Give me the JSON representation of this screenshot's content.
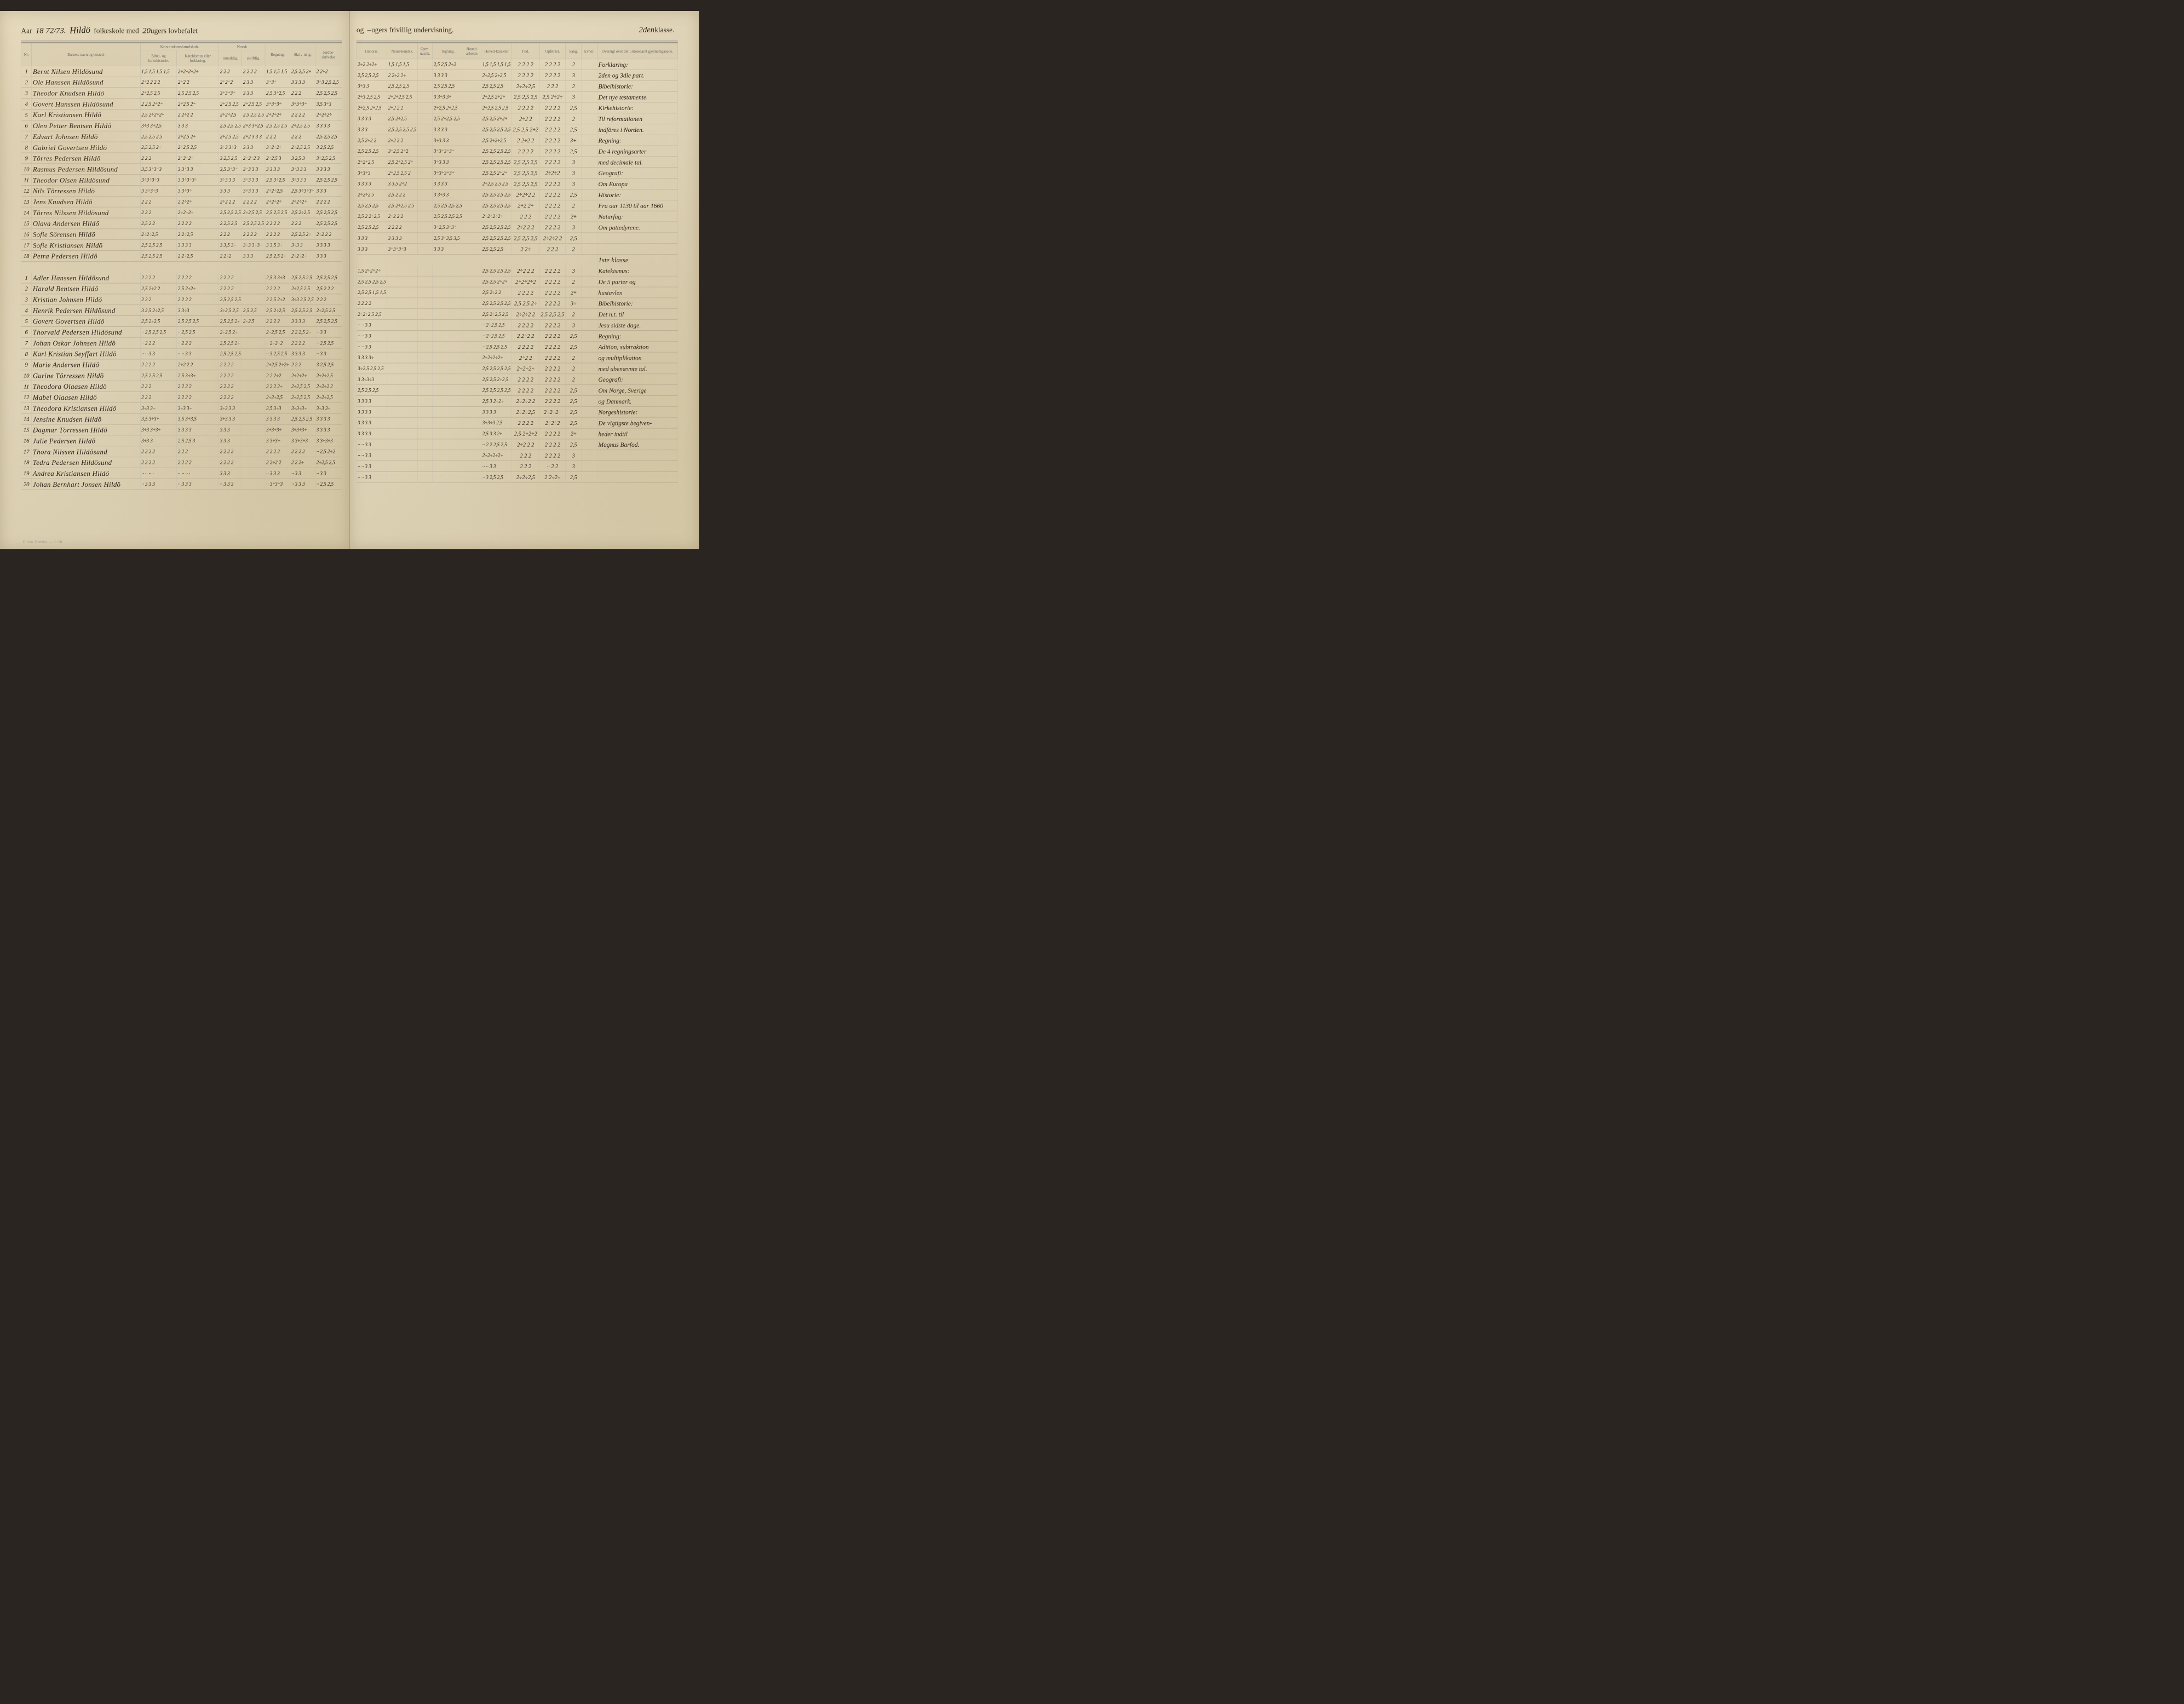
{
  "meta": {
    "year_prefix": "Aar",
    "year_value": "18 72/73.",
    "school_name": "Hildö",
    "left_header_printed": "folkeskole med",
    "weeks_mandatory": "20",
    "left_header_tail": "ugers lovbefalet",
    "right_header_printed": "og",
    "weeks_optional": "–",
    "right_header_tail": "ugers frivillig undervisning.",
    "klasse_label": "klasse.",
    "klasse_value": "2den",
    "klasse_mid": "1ste klasse",
    "footer": "E. Sem. Fredrikst. — A. CB."
  },
  "columns_left": {
    "nr": "Nr.",
    "name": "Barnets navn og bosted.",
    "kristendom_group": "Kristendomskundskab.",
    "bibel": "Bibel- og kirkehistorie.",
    "katekismus": "Katekismus eller forklaring.",
    "norsk_group": "Norsk",
    "mundtlig": "mundtlig.",
    "skriftlig": "skriftlig.",
    "regning": "Regning.",
    "skrivning": "Skriv-ning.",
    "jord": "Jordbe-skrivelse"
  },
  "columns_right": {
    "historie": "Historie.",
    "natur": "Natur-kundsk.",
    "gym": "Gym-nastik.",
    "tegning": "Tegning.",
    "haand": "Haand-arbeide.",
    "hoved": "Hoved-karakter",
    "flid": "Flid.",
    "opforsel": "Opførsel.",
    "sang": "Sang.",
    "evner": "Evner.",
    "oversigt": "Oversigt over det i skoleaaret gjennemgaaede."
  },
  "section1": [
    {
      "nr": "1",
      "name": "Bernt Nilsen Hildösund",
      "l": [
        "1,5 1,5 1,5 1,5",
        "2÷2÷2÷2÷",
        "2 2 2",
        "2 2 2 2",
        "1,5 1,5 1,5",
        "2,5 2,5 2÷",
        "2 2÷2"
      ],
      "r": [
        "2÷2 2÷2÷",
        "1,5 1,5 1,5",
        "",
        "2,5 2,5 2÷2",
        "",
        "1,5 1,5 1,5 1,5",
        "2 2 2 2",
        "2 2 2 2",
        "2",
        "",
        "2"
      ],
      "note": "Forklaring:"
    },
    {
      "nr": "2",
      "name": "Ole Hanssen Hildösund",
      "l": [
        "2÷2 2 2 2",
        "2÷2 2",
        "2÷2÷2",
        "2 3 3",
        "3÷3÷",
        "3 3 3 3",
        "3÷3 2,5 2,5"
      ],
      "r": [
        "2,5 2,5 2,5",
        "2 2÷2 2÷",
        "",
        "3 3 3 3",
        "",
        "2÷2,5 2÷2,5",
        "2 2 2 2",
        "2 2 2 2",
        "3",
        "",
        "2"
      ],
      "note": "2den og 3die part."
    },
    {
      "nr": "3",
      "name": "Theodor Knudsen Hildö",
      "l": [
        "2÷2,5 2,5",
        "2,5 2,5 2,5",
        "3÷3÷3÷",
        "3 3 3",
        "2,5 3÷2,5",
        "2 2 2",
        "2,5 2,5 2,5"
      ],
      "r": [
        "3÷3 3",
        "2,5 2,5 2,5",
        "",
        "2,5 2,5 2,5",
        "",
        "2,5 2,5 2,5",
        "2÷2÷2,5",
        "2 2 2",
        "2",
        "",
        "2÷"
      ],
      "note": "Bibelhistorie:"
    },
    {
      "nr": "4",
      "name": "Govert Hanssen Hildösund",
      "l": [
        "2 2,5 2÷2÷",
        "2÷2,5 2÷",
        "2÷2,5 2,5",
        "2÷2,5 2,5",
        "3÷3÷3÷",
        "3÷3÷3÷",
        "3,5 3÷3"
      ],
      "r": [
        "2÷3 2,5 2,5",
        "2÷2÷2,5 2,5",
        "",
        "3 3÷3 3÷",
        "",
        "2÷2,5 2÷2÷",
        "2,5 2,5 2,5",
        "2,5 2÷2÷",
        "3",
        "",
        "2"
      ],
      "note": "Det nye testamente."
    },
    {
      "nr": "5",
      "name": "Karl Kristiansen Hildö",
      "l": [
        "2,5 2÷2÷2÷",
        "2 2÷2 2",
        "2÷2÷2,5",
        "2,5 2,5 2,5",
        "2÷2÷2÷",
        "2 2 2 2",
        "2÷2÷2÷"
      ],
      "r": [
        "2÷2,5 2÷2,5",
        "2÷2 2 2",
        "",
        "2÷2,5 2÷2,5",
        "",
        "2÷2,5 2,5 2,5",
        "2 2 2 2",
        "2 2 2 2",
        "2,5",
        "",
        "2,5"
      ],
      "note": "Kirkehistorie:"
    },
    {
      "nr": "6",
      "name": "Olen Petter Bentsen Hildö",
      "l": [
        "3÷3 3÷2,5",
        "3 3 3",
        "2,5 2,5 2,5",
        "2÷3 3÷2,5",
        "2,5 2,5 2,5",
        "2÷2,5 2,5",
        "3 3 3 3"
      ],
      "r": [
        "3 3 3 3",
        "2,5 2÷2,5",
        "",
        "2,5 2÷2,5 2,5",
        "",
        "2,5 2,5 2÷2÷",
        "2÷2 2",
        "2 2 2 2",
        "2",
        "",
        "2÷"
      ],
      "note": "Til reformationen"
    },
    {
      "nr": "7",
      "name": "Edvart Johnsen Hildö",
      "l": [
        "2,5 2,5 2,5",
        "2÷2,5 2÷",
        "2÷2,5 2,5",
        "2÷2 3 3 3",
        "2 2 2",
        "2 2 2",
        "2,5 2,5 2,5"
      ],
      "r": [
        "3 3 3",
        "2,5 2,5 2,5 2,5",
        "",
        "3 3 3 3",
        "",
        "2,5 2,5 2,5 2,5",
        "2,5 2,5 2÷2",
        "2 2 2 2",
        "2,5",
        "",
        "2"
      ],
      "note": "indföres i Norden."
    },
    {
      "nr": "8",
      "name": "Gabriel Govertsen Hildö",
      "l": [
        "2,5 2,5 2÷",
        "2÷2,5 2,5",
        "3÷3 3÷3",
        "3 3 3",
        "3÷2÷2÷",
        "2÷2,5 2,5",
        "3 2,5 2,5"
      ],
      "r": [
        "2,5 2÷2 2",
        "2÷2 2 2",
        "",
        "3÷3 3 3",
        "",
        "2,5 2÷2÷2,5",
        "2 2÷2 2",
        "2 2 2 2",
        "3+",
        "",
        "2"
      ],
      "note": "Regning:"
    },
    {
      "nr": "9",
      "name": "Törres Pedersen Hildö",
      "l": [
        "2 2 2",
        "2÷2÷2÷",
        "3 2,5 2,5",
        "2÷2÷2 3",
        "2÷2,5 3",
        "3 2,5 3",
        "3÷2,5 2,5"
      ],
      "r": [
        "2,5 2,5 2,5",
        "3÷2,5 2÷2",
        "",
        "3÷3÷3÷3÷",
        "",
        "2,5 2,5 2,5 2,5",
        "2 2 2 2",
        "2 2 2 2",
        "2,5",
        "",
        "2"
      ],
      "note": "De 4 regningsarter"
    },
    {
      "nr": "10",
      "name": "Rasmus Pedersen Hildösund",
      "l": [
        "3,5 3÷3÷3",
        "3 3÷3 3",
        "3,5 3÷3÷",
        "3÷3 3 3",
        "3 3 3 3",
        "3÷3 3 3",
        "3 3 3 3"
      ],
      "r": [
        "2÷2÷2,5",
        "2,5 2÷2,5 2÷",
        "",
        "3÷3 3 3",
        "",
        "2,5 2,5 2,5 2,5",
        "2,5 2,5 2,5",
        "2 2 2 2",
        "3",
        "",
        "2÷"
      ],
      "note": "med decimale tal."
    },
    {
      "nr": "11",
      "name": "Theodor Olsen Hildösund",
      "l": [
        "3÷3÷3÷3",
        "3 3÷3÷3÷",
        "3÷3 3 3",
        "3÷3 3 3",
        "2,5 3÷2,5",
        "3÷3 3 3",
        "2,5 2,5 2,5"
      ],
      "r": [
        "3÷3÷3",
        "2÷2,5 2,5 2",
        "",
        "3÷3÷3÷3÷",
        "",
        "2,5 2,5 2÷2÷",
        "2,5 2,5 2,5",
        "2÷2÷2",
        "3",
        "",
        "2"
      ],
      "note": "Geografi:"
    },
    {
      "nr": "12",
      "name": "Nils Törressen Hildö",
      "l": [
        "3 3÷3÷3",
        "3 3÷3÷",
        "3 3 3",
        "3÷3 3 3",
        "2÷2÷2,5",
        "2,5 3÷3÷3÷",
        "3 3 3"
      ],
      "r": [
        "3 3 3 3",
        "3 3,5 2÷2",
        "",
        "3 3 3 3",
        "",
        "2÷2,5 2,5 2,5",
        "2,5 2,5 2,5",
        "2 2 2 2",
        "3",
        "",
        "2,5"
      ],
      "note": "Om Europa"
    },
    {
      "nr": "13",
      "name": "Jens Knudsen Hildö",
      "l": [
        "2 2 2",
        "2 2÷2÷",
        "2÷2 2 2",
        "2 2 2 2",
        "2÷2÷2÷",
        "2÷2÷2÷",
        "2 2 2 2"
      ],
      "r": [
        "2÷2÷2,5",
        "2,5 2 2 2",
        "",
        "3 3÷3 3",
        "",
        "2,5 2,5 2,5 2,5",
        "2÷2÷2 2",
        "2 2 2 2",
        "2,5",
        "",
        "2"
      ],
      "note": "Historie:"
    },
    {
      "nr": "14",
      "name": "Törres Nilssen Hildösund",
      "l": [
        "2 2 2",
        "2÷2÷2÷",
        "2,5 2,5 2,5",
        "2÷2,5 2,5",
        "2,5 2,5 2,5",
        "2,5 2÷2,5",
        "2,5 2,5 2,5"
      ],
      "r": [
        "2,5 2,5 2,5",
        "2,5 2÷2,5 2,5",
        "",
        "2,5 2,5 2,5 2,5",
        "",
        "2,5 2,5 2,5 2,5",
        "2÷2 2÷",
        "2 2 2 2",
        "2",
        "",
        "2"
      ],
      "note": "Fra aar 1130 til aar 1660"
    },
    {
      "nr": "15",
      "name": "Olava Andersen Hildö",
      "l": [
        "2,5 2 2",
        "2 2 2 2",
        "2 2,5 2,5",
        "2,5 2,5 2,5",
        "2 2 2 2",
        "2 2 2",
        "2,5 2,5 2,5"
      ],
      "r": [
        "2,5 2 2÷2,5",
        "2÷2 2 2",
        "",
        "2,5 2,5 2,5 2,5",
        "",
        "2÷2÷2÷2÷",
        "2 2 2",
        "2 2 2 2",
        "2÷",
        "",
        "2"
      ],
      "note": "Naturfag:"
    },
    {
      "nr": "16",
      "name": "Sofie Sörensen Hildö",
      "l": [
        "2÷2÷2,5",
        "2 2÷2,5",
        "2 2 2",
        "2 2 2 2",
        "2 2 2 2",
        "2,5 2,5 2÷",
        "2÷2 2 2"
      ],
      "r": [
        "2,5 2,5 2,5",
        "2 2 2 2",
        "",
        "3÷2,5 3÷3÷",
        "",
        "2,5 2,5 2,5 2,5",
        "2÷2 2 2",
        "2 2 2 2",
        "3",
        "",
        "2÷"
      ],
      "note": "Om pattedyrene."
    },
    {
      "nr": "17",
      "name": "Sofie Kristiansen Hildö",
      "l": [
        "2,5 2,5 2,5",
        "3 3 3 3",
        "3 3,5 3÷",
        "3÷3 3÷3÷",
        "3 3,5 3÷",
        "3÷3 3",
        "3 3 3 3"
      ],
      "r": [
        "3 3 3",
        "3 3 3 3",
        "",
        "2,5 3÷3,5 3,5",
        "",
        "2,5 2,5 2,5 2,5",
        "2,5 2,5 2,5",
        "2÷2÷2 2",
        "2,5",
        "",
        "2,5"
      ],
      "note": ""
    },
    {
      "nr": "18",
      "name": "Petra Pedersen Hildö",
      "l": [
        "2,5 2,5 2,5",
        "2 2÷2,5",
        "2 2÷2",
        "3 3 3",
        "2,5 2,5 2÷",
        "2÷2÷2÷",
        "3 3 3"
      ],
      "r": [
        "3 3 3",
        "3÷3÷3÷3",
        "",
        "3 3 3",
        "",
        "2,5 2,5 2,5",
        "2 2÷",
        "2 2 2",
        "2",
        "",
        "2÷"
      ],
      "note": ""
    }
  ],
  "section2": [
    {
      "nr": "1",
      "name": "Adler Hanssen Hildösund",
      "l": [
        "2 2 2 2",
        "2 2 2 2",
        "2 2 2 2",
        "",
        "2,5 3 3÷3",
        "2,5 2,5 2,5",
        "2,5 2,5 2,5"
      ],
      "r": [
        "1,5 2÷2÷2÷",
        "",
        "",
        "",
        "",
        "2,5 2,5 2,5 2,5",
        "2÷2 2 2",
        "2 2 2 2",
        "3",
        "",
        "2"
      ],
      "note": "Katekismus:"
    },
    {
      "nr": "2",
      "name": "Harald Bentsen Hildö",
      "l": [
        "2,5 2÷2 2",
        "2,5 2÷2÷",
        "2 2 2 2",
        "",
        "2 2 2 2",
        "2÷2,5 2,5",
        "2,5 2 2 2"
      ],
      "r": [
        "2,5 2,5 2,5 2,5",
        "",
        "",
        "",
        "",
        "2,5 2,5 2÷2÷",
        "2÷2÷2÷2",
        "2 2 2 2",
        "2",
        "",
        "2÷"
      ],
      "note": "De 5 parter og"
    },
    {
      "nr": "3",
      "name": "Kristian Johnsen Hildö",
      "l": [
        "2 2 2",
        "2 2 2 2",
        "2,5 2,5 2,5",
        "",
        "2 2,5 2÷2",
        "3÷3 2,5 2,5",
        "2 2 2"
      ],
      "r": [
        "2,5 2,5 1,5 1,5",
        "",
        "",
        "",
        "",
        "2,5 2÷2 2",
        "2 2 2 2",
        "2 2 2 2",
        "2÷",
        "",
        "2"
      ],
      "note": "hustavlen"
    },
    {
      "nr": "4",
      "name": "Henrik Pedersen Hildösund",
      "l": [
        "3 2,5 2÷2,5",
        "3 3÷3",
        "3÷2,5 2,5",
        "2,5 2,5",
        "2,5 2÷2,5",
        "2,5 2,5 2,5",
        "2÷2,5 2,5"
      ],
      "r": [
        "2 2 2 2",
        "",
        "",
        "",
        "",
        "2,5 2,5 2,5 2,5",
        "2,5 2,5 2÷",
        "2 2 2 2",
        "3÷",
        "",
        "2÷"
      ],
      "note": "Bibelhistorie:"
    },
    {
      "nr": "5",
      "name": "Govert Govertsen Hildö",
      "l": [
        "2,5 2÷2,5",
        "2,5 2,5 2,5",
        "2,5 2,5 2÷",
        "2÷2,5",
        "2 2 2 2",
        "3 3 3 3",
        "2,5 2,5 2,5"
      ],
      "r": [
        "2÷2÷2,5 2,5",
        "",
        "",
        "",
        "",
        "2,5 2÷2,5 2,5",
        "2÷2÷2 2",
        "2,5 2,5 2,5",
        "2",
        "",
        "2"
      ],
      "note": "Det n.t. til"
    },
    {
      "nr": "6",
      "name": "Thorvald Pedersen Hildösund",
      "l": [
        "·· 2,5 2,5 2,5",
        "·· 2,5 2,5",
        "2÷2,5 2÷",
        "",
        "2÷2,5 2,5",
        "2 2 2,5 2÷",
        "·· 3 3"
      ],
      "r": [
        "·· ·· 3 3",
        "",
        "",
        "",
        "",
        "·· 2÷2,5 2,5",
        "2 2 2 2",
        "2 2 2 2",
        "3",
        "",
        "2÷"
      ],
      "note": "Jesu sidste dage."
    },
    {
      "nr": "7",
      "name": "Johan Oskar Johnsen Hildö",
      "l": [
        "·· 2 2 2",
        "·· 2 2 2",
        "2,5 2,5 2÷",
        "",
        "·· 2÷2÷2",
        "2 2 2 2",
        "·· 2,5 2,5"
      ],
      "r": [
        "·· ·· 3 3",
        "",
        "",
        "",
        "",
        "·· 2÷2,5 2,5",
        "2 2÷2 2",
        "2 2 2 2",
        "2,5",
        "",
        "2"
      ],
      "note": "Regning:"
    },
    {
      "nr": "8",
      "name": "Karl Kristian Seyffart Hildö",
      "l": [
        "·· ·· 3 3",
        "·· ·· 3 3",
        "2,5 2,5 2,5",
        "",
        "·· 3 2,5 2,5",
        "3 3 3 3",
        "·· 3 3"
      ],
      "r": [
        "·· ·· 3 3",
        "",
        "",
        "",
        "",
        "·· 2,5 2,5 2,5",
        "2 2 2 2",
        "2 2 2 2",
        "2,5",
        "",
        "2,5"
      ],
      "note": "Adition, subtraktion"
    },
    {
      "nr": "9",
      "name": "Marie Andersen Hildö",
      "l": [
        "2 2 2 2",
        "2÷2 2 2",
        "2 2 2 2",
        "",
        "2÷2,5 2÷2÷",
        "2 2 2",
        "3 2,5 2,5"
      ],
      "r": [
        "3 3 3 3÷",
        "",
        "",
        "",
        "",
        "2÷2÷2÷2÷",
        "2÷2 2",
        "2 2 2 2",
        "2",
        "",
        "2"
      ],
      "note": "og multiplikation"
    },
    {
      "nr": "10",
      "name": "Gurine Törressen Hildö",
      "l": [
        "2,5 2,5 2,5",
        "2,5 3÷3÷",
        "2 2 2 2",
        "",
        "2 2 2÷2",
        "2÷2÷2÷",
        "2÷2÷2,5"
      ],
      "r": [
        "3÷2,5 2,5 2,5",
        "",
        "",
        "",
        "",
        "2,5 2,5 2,5 2,5",
        "2÷2÷2÷",
        "2 2 2 2",
        "2",
        "",
        "2÷"
      ],
      "note": "med ubenævnte tal."
    },
    {
      "nr": "11",
      "name": "Theodora Olaasen Hildö",
      "l": [
        "2 2 2",
        "2 2 2 2",
        "2 2 2 2",
        "",
        "2 2 2 2÷",
        "2÷2,5 2,5",
        "2÷2÷2 2"
      ],
      "r": [
        "3 3÷3÷3",
        "",
        "",
        "",
        "",
        "2,5 2,5 2÷2,5",
        "2 2 2 2",
        "2 2 2 2",
        "2",
        "",
        "2,5"
      ],
      "note": "Geografi:"
    },
    {
      "nr": "12",
      "name": "Mabel Olaasen Hildö",
      "l": [
        "2 2 2",
        "2 2 2 2",
        "2 2 2 2",
        "",
        "2÷2÷2,5",
        "2÷2,5 2,5",
        "2÷2÷2,5"
      ],
      "r": [
        "2,5 2,5 2,5",
        "",
        "",
        "",
        "",
        "2,5 2,5 2,5 2,5",
        "2 2 2 2",
        "2 2 2 2",
        "2,5",
        "",
        "2"
      ],
      "note": "Om Norge, Sverige"
    },
    {
      "nr": "13",
      "name": "Theodora Kristiansen Hildö",
      "l": [
        "3÷3 3÷",
        "3÷3 3÷",
        "3÷3 3 3",
        "",
        "3,5 3÷3",
        "3÷3÷3÷",
        "3÷3 3÷"
      ],
      "r": [
        "3 3 3 3",
        "",
        "",
        "",
        "",
        "2,5 3 2÷2÷",
        "2÷2÷2 2",
        "2 2 2 2",
        "2,5",
        "",
        "2,5"
      ],
      "note": "og Danmark."
    },
    {
      "nr": "14",
      "name": "Jensine Knudsen Hildö",
      "l": [
        "3,5 3÷3÷",
        "3,5 3÷3,5",
        "3÷3 3 3",
        "",
        "3 3 3 3",
        "2,5 2,5 2,5",
        "3 3 3 3"
      ],
      "r": [
        "3 3 3 3",
        "",
        "",
        "",
        "",
        "3 3 3 3",
        "2÷2÷2,5",
        "2÷2÷2÷",
        "2,5",
        "",
        "3+"
      ],
      "note": "Norgeshistorie:"
    },
    {
      "nr": "15",
      "name": "Dagmar Törressen Hildö",
      "l": [
        "3÷3 3÷3÷",
        "3 3 3 3",
        "3 3 3",
        "",
        "3÷3÷3÷",
        "3÷3÷3÷",
        "3 3 3 3"
      ],
      "r": [
        "3 3 3 3",
        "",
        "",
        "",
        "",
        "3÷3÷3 2,5",
        "2 2 2 2",
        "2÷2÷2",
        "2,5",
        "",
        "2,5"
      ],
      "note": "De vigtigste begiven-"
    },
    {
      "nr": "16",
      "name": "Julie Pedersen Hildö",
      "l": [
        "3÷3 3",
        "2,5 2,5 3",
        "3 3 3",
        "",
        "3 3÷3÷",
        "3 3÷3÷3",
        "3 3÷3÷3"
      ],
      "r": [
        "3 3 3 3",
        "",
        "",
        "",
        "",
        "2,5 3 3 2÷",
        "2,5 2÷2÷2",
        "2 2 2 2",
        "2÷",
        "",
        "3+"
      ],
      "note": "heder indtil"
    },
    {
      "nr": "17",
      "name": "Thora Nilssen Hildösund",
      "l": [
        "2 2 2 2",
        "2 2 2",
        "2 2 2 2",
        "",
        "2 2 2 2",
        "2 2 2 2",
        "·· 2,5 2÷2"
      ],
      "r": [
        "·· ·· 3 3",
        "",
        "",
        "",
        "",
        "·· 2 2 2,5 2,5",
        "2÷2 2 2",
        "2 2 2 2",
        "2,5",
        "",
        "2"
      ],
      "note": "Magnus Barfod."
    },
    {
      "nr": "18",
      "name": "Tedra Pedersen Hildösund",
      "l": [
        "2 2 2 2",
        "2 2 2 2",
        "2 2 2 2",
        "",
        "2 2÷2 2",
        "2 2 2÷",
        "2÷2,5 2,5"
      ],
      "r": [
        "·· ·· 3 3",
        "",
        "",
        "",
        "",
        "2÷2÷2÷2÷",
        "2 2 2",
        "2 2 2 2",
        "3",
        "",
        "2"
      ],
      "note": ""
    },
    {
      "nr": "19",
      "name": "Andrea Kristiansen Hildö",
      "l": [
        "·· ·· ·· ·",
        "·· ·· ·· ·",
        "3 3 3",
        "",
        "·· 3 3 3",
        "·· 3 3",
        "·· 3 3"
      ],
      "r": [
        "·· ·· 3 3",
        "",
        "",
        "",
        "",
        "·· ·· 3 3",
        "2 2 2",
        "·· 2 2",
        "3",
        "",
        "2,5"
      ],
      "note": ""
    },
    {
      "nr": "20",
      "name": "Johan Bernhart Jonsen Hildö",
      "l": [
        "·· 3 3 3",
        "·· 3 3 3",
        "·· 3 3 3",
        "",
        "·· 3÷3÷3",
        "·· 3 3 3",
        "·· 2,5 2,5"
      ],
      "r": [
        "·· ·· 3 3",
        "",
        "",
        "",
        "",
        "·· 3 2,5 2,5",
        "2÷2÷2,5",
        "2 2÷2÷",
        "2,5",
        "",
        "2"
      ],
      "note": ""
    }
  ]
}
